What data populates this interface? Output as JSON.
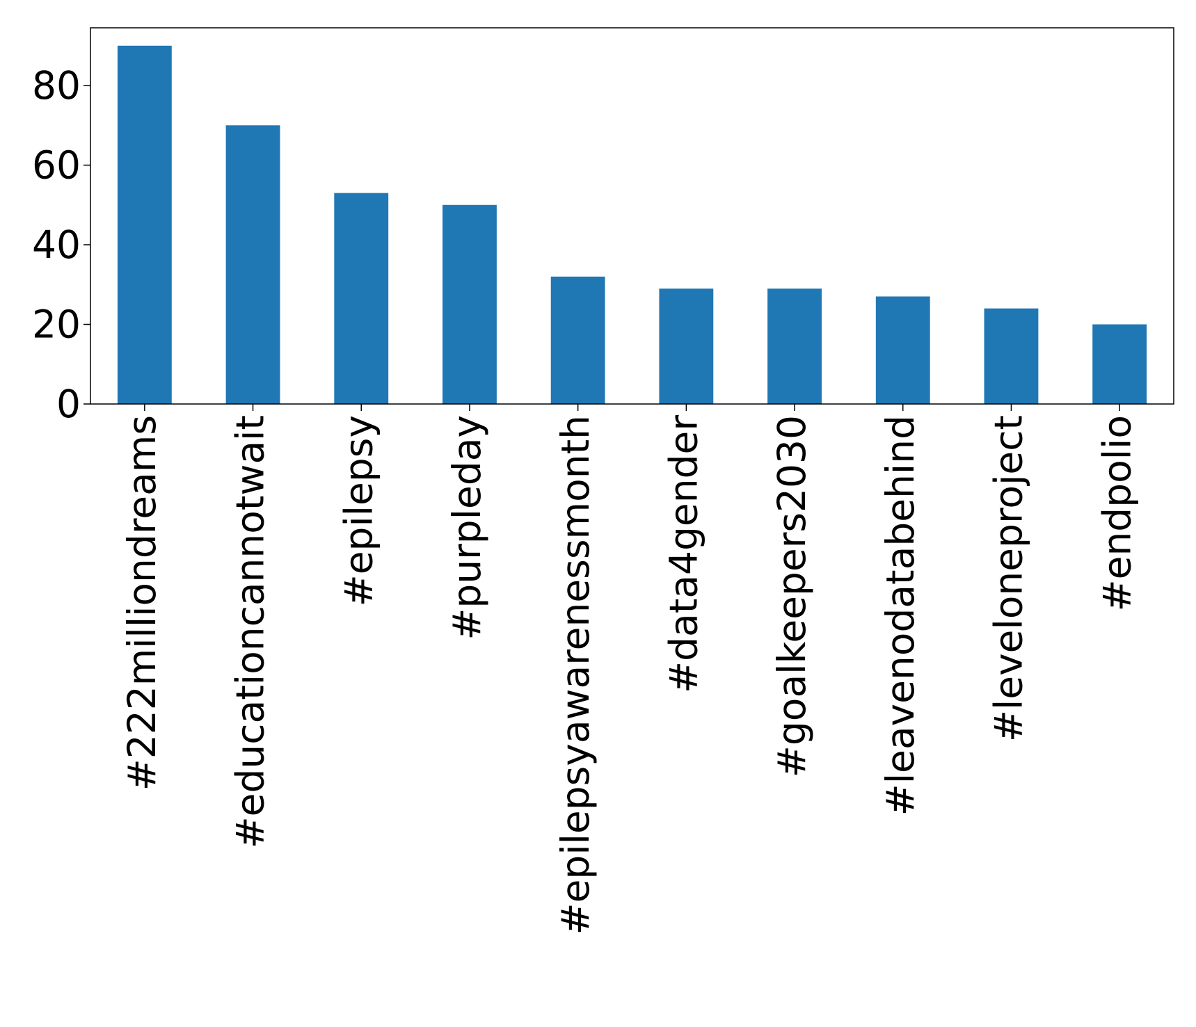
{
  "chart_data": {
    "type": "bar",
    "categories": [
      "#222milliondreams",
      "#educationcannotwait",
      "#epilepsy",
      "#purpleday",
      "#epilepsyawarenessmonth",
      "#data4gender",
      "#goalkeepers2030",
      "#leavenodatabehind",
      "#leveloneproject",
      "#endpolio"
    ],
    "values": [
      90,
      70,
      53,
      50,
      32,
      29,
      29,
      27,
      24,
      20
    ],
    "color": "#1f77b4",
    "ylim": [
      0,
      94.5
    ],
    "yticks": [
      0,
      20,
      40,
      60,
      80
    ],
    "grid": false
  }
}
